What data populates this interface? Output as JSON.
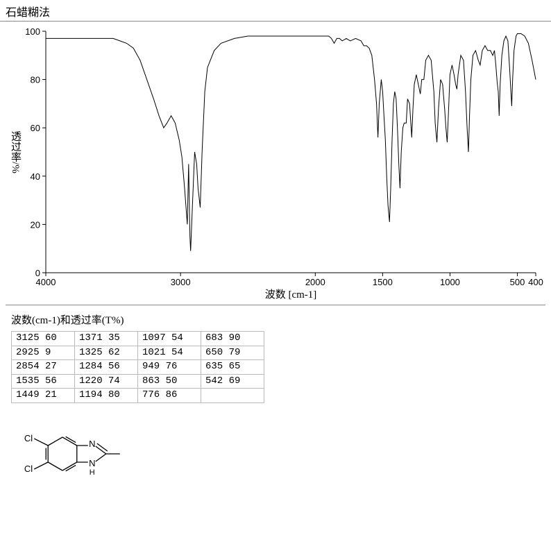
{
  "title": "石蜡糊法",
  "chart": {
    "type": "line",
    "xlabel": "波数 [cm-1]",
    "ylabel": "透过率/%",
    "xlim": [
      4000,
      400
    ],
    "ylim": [
      0,
      100
    ],
    "xticks": [
      4000,
      3000,
      2000,
      1500,
      1000,
      500,
      400
    ],
    "yticks": [
      0,
      20,
      40,
      60,
      80,
      100
    ],
    "label_fontsize": 15,
    "tick_fontsize": 13,
    "line_color": "#000000",
    "line_width": 1,
    "background_color": "#ffffff",
    "axis_color": "#000000",
    "series": [
      {
        "x": 4000,
        "y": 97
      },
      {
        "x": 3900,
        "y": 97
      },
      {
        "x": 3800,
        "y": 97
      },
      {
        "x": 3700,
        "y": 97
      },
      {
        "x": 3600,
        "y": 97
      },
      {
        "x": 3500,
        "y": 97
      },
      {
        "x": 3450,
        "y": 96
      },
      {
        "x": 3400,
        "y": 95
      },
      {
        "x": 3350,
        "y": 93
      },
      {
        "x": 3300,
        "y": 88
      },
      {
        "x": 3250,
        "y": 80
      },
      {
        "x": 3200,
        "y": 72
      },
      {
        "x": 3160,
        "y": 65
      },
      {
        "x": 3125,
        "y": 60
      },
      {
        "x": 3100,
        "y": 62
      },
      {
        "x": 3070,
        "y": 65
      },
      {
        "x": 3040,
        "y": 62
      },
      {
        "x": 3010,
        "y": 55
      },
      {
        "x": 2990,
        "y": 48
      },
      {
        "x": 2970,
        "y": 35
      },
      {
        "x": 2950,
        "y": 20
      },
      {
        "x": 2940,
        "y": 45
      },
      {
        "x": 2930,
        "y": 15
      },
      {
        "x": 2925,
        "y": 9
      },
      {
        "x": 2910,
        "y": 30
      },
      {
        "x": 2895,
        "y": 50
      },
      {
        "x": 2880,
        "y": 45
      },
      {
        "x": 2870,
        "y": 35
      },
      {
        "x": 2854,
        "y": 27
      },
      {
        "x": 2840,
        "y": 50
      },
      {
        "x": 2820,
        "y": 75
      },
      {
        "x": 2800,
        "y": 85
      },
      {
        "x": 2750,
        "y": 92
      },
      {
        "x": 2700,
        "y": 95
      },
      {
        "x": 2600,
        "y": 97
      },
      {
        "x": 2500,
        "y": 98
      },
      {
        "x": 2400,
        "y": 98
      },
      {
        "x": 2300,
        "y": 98
      },
      {
        "x": 2200,
        "y": 98
      },
      {
        "x": 2100,
        "y": 98
      },
      {
        "x": 2000,
        "y": 98
      },
      {
        "x": 1950,
        "y": 98
      },
      {
        "x": 1900,
        "y": 98
      },
      {
        "x": 1880,
        "y": 97
      },
      {
        "x": 1860,
        "y": 95
      },
      {
        "x": 1840,
        "y": 97
      },
      {
        "x": 1820,
        "y": 97
      },
      {
        "x": 1800,
        "y": 96
      },
      {
        "x": 1770,
        "y": 97
      },
      {
        "x": 1740,
        "y": 96
      },
      {
        "x": 1700,
        "y": 97
      },
      {
        "x": 1660,
        "y": 96
      },
      {
        "x": 1640,
        "y": 94
      },
      {
        "x": 1620,
        "y": 94
      },
      {
        "x": 1600,
        "y": 93
      },
      {
        "x": 1580,
        "y": 90
      },
      {
        "x": 1560,
        "y": 80
      },
      {
        "x": 1545,
        "y": 70
      },
      {
        "x": 1535,
        "y": 56
      },
      {
        "x": 1525,
        "y": 70
      },
      {
        "x": 1510,
        "y": 80
      },
      {
        "x": 1500,
        "y": 75
      },
      {
        "x": 1490,
        "y": 65
      },
      {
        "x": 1480,
        "y": 55
      },
      {
        "x": 1470,
        "y": 40
      },
      {
        "x": 1460,
        "y": 28
      },
      {
        "x": 1449,
        "y": 21
      },
      {
        "x": 1440,
        "y": 35
      },
      {
        "x": 1430,
        "y": 55
      },
      {
        "x": 1420,
        "y": 70
      },
      {
        "x": 1410,
        "y": 75
      },
      {
        "x": 1400,
        "y": 72
      },
      {
        "x": 1390,
        "y": 60
      },
      {
        "x": 1380,
        "y": 45
      },
      {
        "x": 1371,
        "y": 35
      },
      {
        "x": 1362,
        "y": 50
      },
      {
        "x": 1350,
        "y": 60
      },
      {
        "x": 1340,
        "y": 62
      },
      {
        "x": 1325,
        "y": 62
      },
      {
        "x": 1315,
        "y": 72
      },
      {
        "x": 1300,
        "y": 70
      },
      {
        "x": 1284,
        "y": 56
      },
      {
        "x": 1275,
        "y": 68
      },
      {
        "x": 1265,
        "y": 78
      },
      {
        "x": 1250,
        "y": 82
      },
      {
        "x": 1235,
        "y": 78
      },
      {
        "x": 1220,
        "y": 74
      },
      {
        "x": 1210,
        "y": 80
      },
      {
        "x": 1194,
        "y": 80
      },
      {
        "x": 1180,
        "y": 88
      },
      {
        "x": 1160,
        "y": 90
      },
      {
        "x": 1140,
        "y": 88
      },
      {
        "x": 1120,
        "y": 75
      },
      {
        "x": 1110,
        "y": 62
      },
      {
        "x": 1097,
        "y": 54
      },
      {
        "x": 1085,
        "y": 68
      },
      {
        "x": 1070,
        "y": 80
      },
      {
        "x": 1055,
        "y": 78
      },
      {
        "x": 1040,
        "y": 68
      },
      {
        "x": 1030,
        "y": 60
      },
      {
        "x": 1021,
        "y": 54
      },
      {
        "x": 1010,
        "y": 68
      },
      {
        "x": 1000,
        "y": 82
      },
      {
        "x": 985,
        "y": 86
      },
      {
        "x": 970,
        "y": 82
      },
      {
        "x": 958,
        "y": 78
      },
      {
        "x": 949,
        "y": 76
      },
      {
        "x": 940,
        "y": 82
      },
      {
        "x": 920,
        "y": 90
      },
      {
        "x": 900,
        "y": 88
      },
      {
        "x": 885,
        "y": 75
      },
      {
        "x": 873,
        "y": 60
      },
      {
        "x": 863,
        "y": 50
      },
      {
        "x": 855,
        "y": 65
      },
      {
        "x": 845,
        "y": 80
      },
      {
        "x": 830,
        "y": 90
      },
      {
        "x": 810,
        "y": 92
      },
      {
        "x": 790,
        "y": 88
      },
      {
        "x": 776,
        "y": 86
      },
      {
        "x": 760,
        "y": 92
      },
      {
        "x": 740,
        "y": 94
      },
      {
        "x": 720,
        "y": 92
      },
      {
        "x": 700,
        "y": 92
      },
      {
        "x": 683,
        "y": 90
      },
      {
        "x": 670,
        "y": 92
      },
      {
        "x": 660,
        "y": 86
      },
      {
        "x": 650,
        "y": 79
      },
      {
        "x": 642,
        "y": 75
      },
      {
        "x": 635,
        "y": 65
      },
      {
        "x": 628,
        "y": 78
      },
      {
        "x": 615,
        "y": 90
      },
      {
        "x": 600,
        "y": 96
      },
      {
        "x": 585,
        "y": 98
      },
      {
        "x": 570,
        "y": 96
      },
      {
        "x": 558,
        "y": 85
      },
      {
        "x": 548,
        "y": 75
      },
      {
        "x": 542,
        "y": 69
      },
      {
        "x": 535,
        "y": 80
      },
      {
        "x": 525,
        "y": 92
      },
      {
        "x": 510,
        "y": 98
      },
      {
        "x": 500,
        "y": 99
      },
      {
        "x": 480,
        "y": 99
      },
      {
        "x": 460,
        "y": 98
      },
      {
        "x": 440,
        "y": 95
      },
      {
        "x": 420,
        "y": 88
      },
      {
        "x": 400,
        "y": 80
      }
    ]
  },
  "peak_table": {
    "title": "波数(cm-1)和透过率(T%)",
    "columns": [
      [
        "3125 60",
        "2925  9",
        "2854 27",
        "1535 56",
        "1449 21"
      ],
      [
        "1371 35",
        "1325 62",
        "1284 56",
        "1220 74",
        "1194 80"
      ],
      [
        "1097 54",
        "1021 54",
        " 949 76",
        " 863 50",
        " 776 86"
      ],
      [
        "683 90",
        "650 79",
        "635 65",
        "542 69"
      ]
    ]
  },
  "structure": {
    "label_cl": "Cl",
    "label_n": "N",
    "label_h": "H"
  }
}
